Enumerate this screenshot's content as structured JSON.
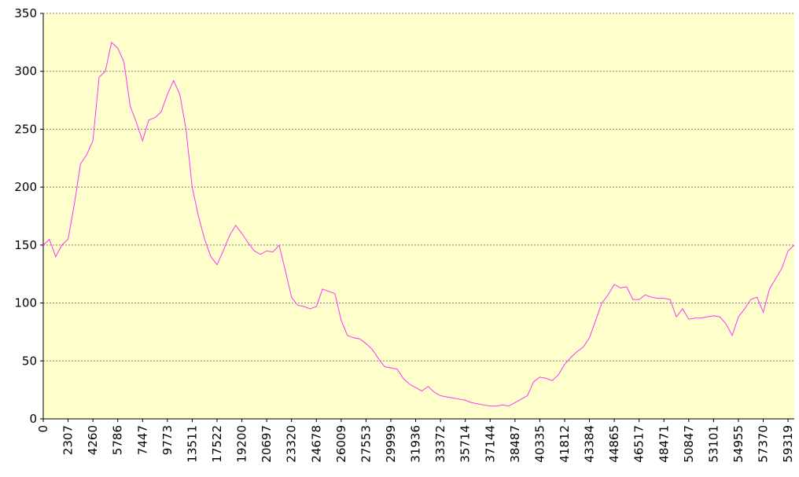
{
  "chart_data": {
    "type": "line",
    "categories": [
      "0",
      null,
      null,
      null,
      "2307",
      null,
      null,
      null,
      "4260",
      null,
      null,
      null,
      "5786",
      null,
      null,
      null,
      "7447",
      null,
      null,
      null,
      "9773",
      null,
      null,
      null,
      "13511",
      null,
      null,
      null,
      "17522",
      null,
      null,
      null,
      "19200",
      null,
      null,
      null,
      "20697",
      null,
      null,
      null,
      "23320",
      null,
      null,
      null,
      "24678",
      null,
      null,
      null,
      "26009",
      null,
      null,
      null,
      "27553",
      null,
      null,
      null,
      "29999",
      null,
      null,
      null,
      "31936",
      null,
      null,
      null,
      "33372",
      null,
      null,
      null,
      "35714",
      null,
      null,
      null,
      "37144",
      null,
      null,
      null,
      "38487",
      null,
      null,
      null,
      "40335",
      null,
      null,
      null,
      "41812",
      null,
      null,
      null,
      "43384",
      null,
      null,
      null,
      "44865",
      null,
      null,
      null,
      "46517",
      null,
      null,
      null,
      "48471",
      null,
      null,
      null,
      "50847",
      null,
      null,
      null,
      "53101",
      null,
      null,
      null,
      "54955",
      null,
      null,
      null,
      "57370",
      null,
      null,
      null,
      "59319",
      null
    ],
    "series": [
      {
        "color": "#ff33ff",
        "values": [
          150,
          155,
          140,
          150,
          155,
          185,
          220,
          228,
          240,
          295,
          300,
          325,
          320,
          308,
          270,
          256,
          240,
          258,
          260,
          265,
          280,
          292,
          280,
          250,
          200,
          175,
          155,
          140,
          133,
          145,
          158,
          167,
          160,
          152,
          145,
          142,
          145,
          144,
          150,
          128,
          105,
          98,
          97,
          95,
          97,
          112,
          110,
          108,
          85,
          72,
          70,
          69,
          65,
          60,
          52,
          45,
          44,
          43,
          35,
          30,
          27,
          24,
          28,
          23,
          20,
          19,
          18,
          17,
          16,
          14,
          13,
          12,
          11,
          11,
          12,
          11,
          14,
          17,
          20,
          32,
          36,
          35,
          33,
          38,
          47,
          53,
          58,
          62,
          70,
          85,
          100,
          107,
          116,
          113,
          114,
          103,
          103,
          107,
          105,
          104,
          104,
          103,
          88,
          95,
          86,
          87,
          87,
          88,
          89,
          88,
          82,
          72,
          88,
          95,
          103,
          105,
          92,
          112,
          121,
          130,
          145,
          150
        ]
      }
    ],
    "ylim": [
      0,
      350
    ],
    "yticks": [
      0,
      50,
      100,
      150,
      200,
      250,
      300,
      350
    ],
    "grid": true,
    "background": "#ffffcc"
  }
}
